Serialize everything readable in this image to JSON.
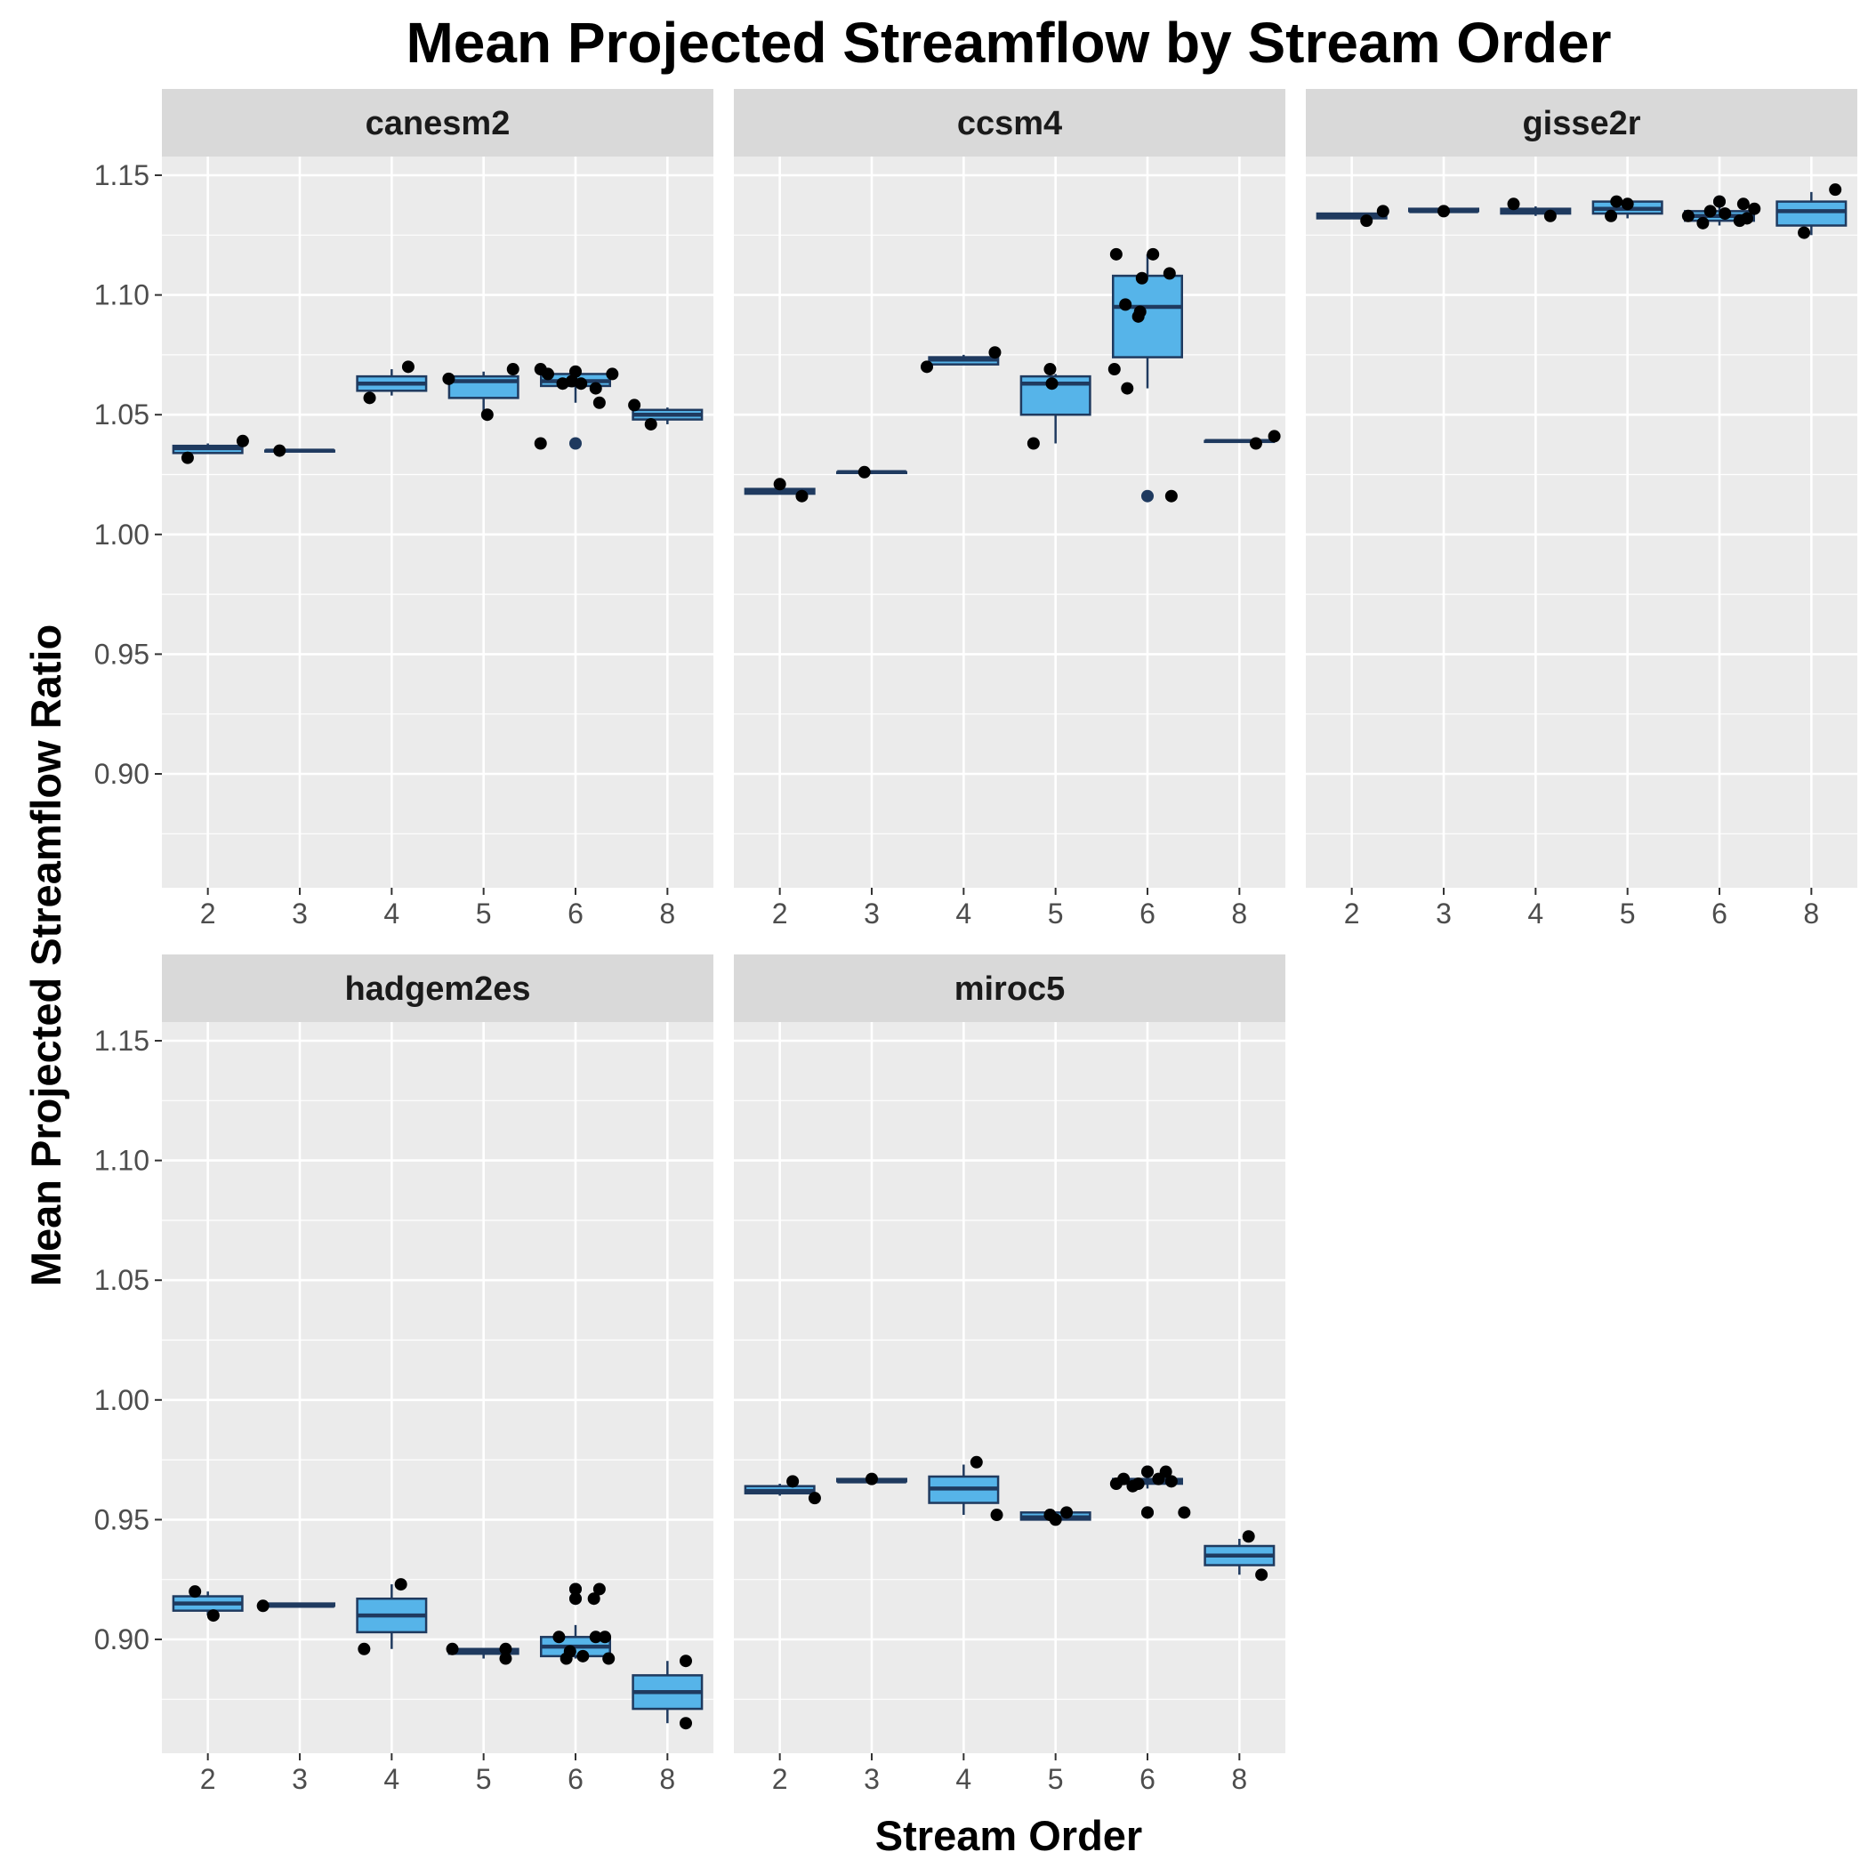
{
  "chart_data": {
    "type": "boxplot",
    "title": "Mean Projected Streamflow by Stream Order",
    "xlabel": "Stream Order",
    "ylabel": "Mean Projected Streamflow Ratio",
    "categories": [
      "2",
      "3",
      "4",
      "5",
      "6",
      "8"
    ],
    "ylim": [
      0.85,
      1.18
    ],
    "yticks": [
      "0.90",
      "0.95",
      "1.00",
      "1.05",
      "1.10",
      "1.15"
    ],
    "grid": true,
    "legend": "none",
    "colors": {
      "panel_bg": "#ebebeb",
      "strip_bg": "#d9d9d9",
      "grid": "#ffffff",
      "box_fill": "#56b4e9",
      "box_line": "#1f3a5f",
      "point": "#000000",
      "outlier": "#1f3a5f"
    },
    "panels": [
      {
        "name": "canesm2",
        "boxes": [
          {
            "x": "2",
            "q1": 1.034,
            "median": 1.036,
            "q3": 1.037,
            "lo": 1.034,
            "hi": 1.038
          },
          {
            "x": "3",
            "q1": 1.035,
            "median": 1.035,
            "q3": 1.035,
            "lo": 1.035,
            "hi": 1.035
          },
          {
            "x": "4",
            "q1": 1.06,
            "median": 1.063,
            "q3": 1.066,
            "lo": 1.058,
            "hi": 1.069
          },
          {
            "x": "5",
            "q1": 1.057,
            "median": 1.064,
            "q3": 1.066,
            "lo": 1.05,
            "hi": 1.068
          },
          {
            "x": "6",
            "q1": 1.062,
            "median": 1.064,
            "q3": 1.067,
            "lo": 1.055,
            "hi": 1.069,
            "outliers": [
              1.038
            ]
          },
          {
            "x": "8",
            "q1": 1.048,
            "median": 1.05,
            "q3": 1.052,
            "lo": 1.046,
            "hi": 1.053
          }
        ],
        "points": [
          {
            "x": "2",
            "y": 1.032,
            "j": -0.22
          },
          {
            "x": "2",
            "y": 1.039,
            "j": 0.38
          },
          {
            "x": "3",
            "y": 1.035,
            "j": -0.22
          },
          {
            "x": "4",
            "y": 1.057,
            "j": -0.24
          },
          {
            "x": "4",
            "y": 1.07,
            "j": 0.18
          },
          {
            "x": "5",
            "y": 1.065,
            "j": -0.38
          },
          {
            "x": "5",
            "y": 1.05,
            "j": 0.04
          },
          {
            "x": "5",
            "y": 1.069,
            "j": 0.32
          },
          {
            "x": "6",
            "y": 1.069,
            "j": -0.38
          },
          {
            "x": "6",
            "y": 1.067,
            "j": -0.3
          },
          {
            "x": "6",
            "y": 1.063,
            "j": -0.14
          },
          {
            "x": "6",
            "y": 1.064,
            "j": -0.04
          },
          {
            "x": "6",
            "y": 1.068,
            "j": 0.0
          },
          {
            "x": "6",
            "y": 1.063,
            "j": 0.06
          },
          {
            "x": "6",
            "y": 1.061,
            "j": 0.22
          },
          {
            "x": "6",
            "y": 1.055,
            "j": 0.26
          },
          {
            "x": "6",
            "y": 1.067,
            "j": 0.4
          },
          {
            "x": "6",
            "y": 1.038,
            "j": -0.38
          },
          {
            "x": "8",
            "y": 1.054,
            "j": -0.36
          },
          {
            "x": "8",
            "y": 1.046,
            "j": -0.18
          }
        ]
      },
      {
        "name": "ccsm4",
        "boxes": [
          {
            "x": "2",
            "q1": 1.017,
            "median": 1.018,
            "q3": 1.019,
            "lo": 1.017,
            "hi": 1.02
          },
          {
            "x": "3",
            "q1": 1.026,
            "median": 1.026,
            "q3": 1.026,
            "lo": 1.026,
            "hi": 1.026
          },
          {
            "x": "4",
            "q1": 1.071,
            "median": 1.073,
            "q3": 1.074,
            "lo": 1.071,
            "hi": 1.075
          },
          {
            "x": "5",
            "q1": 1.05,
            "median": 1.063,
            "q3": 1.066,
            "lo": 1.038,
            "hi": 1.067
          },
          {
            "x": "6",
            "q1": 1.074,
            "median": 1.095,
            "q3": 1.108,
            "lo": 1.061,
            "hi": 1.117,
            "outliers": [
              1.016
            ]
          },
          {
            "x": "8",
            "q1": 1.039,
            "median": 1.039,
            "q3": 1.039,
            "lo": 1.039,
            "hi": 1.039
          }
        ],
        "points": [
          {
            "x": "2",
            "y": 1.021,
            "j": 0.0
          },
          {
            "x": "2",
            "y": 1.016,
            "j": 0.24
          },
          {
            "x": "3",
            "y": 1.026,
            "j": -0.08
          },
          {
            "x": "4",
            "y": 1.07,
            "j": -0.4
          },
          {
            "x": "4",
            "y": 1.076,
            "j": 0.34
          },
          {
            "x": "5",
            "y": 1.038,
            "j": -0.24
          },
          {
            "x": "5",
            "y": 1.069,
            "j": -0.06
          },
          {
            "x": "5",
            "y": 1.063,
            "j": -0.04
          },
          {
            "x": "6",
            "y": 1.117,
            "j": -0.34
          },
          {
            "x": "6",
            "y": 1.096,
            "j": -0.24
          },
          {
            "x": "6",
            "y": 1.069,
            "j": -0.36
          },
          {
            "x": "6",
            "y": 1.061,
            "j": -0.22
          },
          {
            "x": "6",
            "y": 1.093,
            "j": -0.08
          },
          {
            "x": "6",
            "y": 1.091,
            "j": -0.1
          },
          {
            "x": "6",
            "y": 1.107,
            "j": -0.06
          },
          {
            "x": "6",
            "y": 1.117,
            "j": 0.06
          },
          {
            "x": "6",
            "y": 1.109,
            "j": 0.24
          },
          {
            "x": "6",
            "y": 1.016,
            "j": 0.26
          },
          {
            "x": "8",
            "y": 1.038,
            "j": 0.18
          },
          {
            "x": "8",
            "y": 1.041,
            "j": 0.38
          }
        ]
      },
      {
        "name": "gisse2r",
        "boxes": [
          {
            "x": "2",
            "q1": 1.132,
            "median": 1.133,
            "q3": 1.134,
            "lo": 1.132,
            "hi": 1.134
          },
          {
            "x": "3",
            "q1": 1.135,
            "median": 1.135,
            "q3": 1.136,
            "lo": 1.135,
            "hi": 1.136
          },
          {
            "x": "4",
            "q1": 1.134,
            "median": 1.135,
            "q3": 1.136,
            "lo": 1.133,
            "hi": 1.137
          },
          {
            "x": "5",
            "q1": 1.134,
            "median": 1.136,
            "q3": 1.139,
            "lo": 1.132,
            "hi": 1.139
          },
          {
            "x": "6",
            "q1": 1.131,
            "median": 1.133,
            "q3": 1.135,
            "lo": 1.129,
            "hi": 1.137,
            "outliers": [
              1.139
            ]
          },
          {
            "x": "8",
            "q1": 1.129,
            "median": 1.135,
            "q3": 1.139,
            "lo": 1.125,
            "hi": 1.143
          }
        ],
        "points": [
          {
            "x": "2",
            "y": 1.131,
            "j": 0.16
          },
          {
            "x": "2",
            "y": 1.135,
            "j": 0.34
          },
          {
            "x": "3",
            "y": 1.135,
            "j": 0.0
          },
          {
            "x": "4",
            "y": 1.138,
            "j": -0.24
          },
          {
            "x": "4",
            "y": 1.133,
            "j": 0.16
          },
          {
            "x": "5",
            "y": 1.133,
            "j": -0.18
          },
          {
            "x": "5",
            "y": 1.139,
            "j": -0.12
          },
          {
            "x": "5",
            "y": 1.138,
            "j": 0.0
          },
          {
            "x": "6",
            "y": 1.133,
            "j": -0.34
          },
          {
            "x": "6",
            "y": 1.13,
            "j": -0.18
          },
          {
            "x": "6",
            "y": 1.135,
            "j": -0.1
          },
          {
            "x": "6",
            "y": 1.134,
            "j": 0.06
          },
          {
            "x": "6",
            "y": 1.131,
            "j": 0.22
          },
          {
            "x": "6",
            "y": 1.138,
            "j": 0.26
          },
          {
            "x": "6",
            "y": 1.136,
            "j": 0.38
          },
          {
            "x": "6",
            "y": 1.132,
            "j": 0.3
          },
          {
            "x": "6",
            "y": 1.139,
            "j": 0.0
          },
          {
            "x": "8",
            "y": 1.126,
            "j": -0.08
          },
          {
            "x": "8",
            "y": 1.144,
            "j": 0.26
          }
        ]
      },
      {
        "name": "hadgem2es",
        "boxes": [
          {
            "x": "2",
            "q1": 0.912,
            "median": 0.915,
            "q3": 0.918,
            "lo": 0.91,
            "hi": 0.92
          },
          {
            "x": "3",
            "q1": 0.914,
            "median": 0.914,
            "q3": 0.915,
            "lo": 0.914,
            "hi": 0.915
          },
          {
            "x": "4",
            "q1": 0.903,
            "median": 0.91,
            "q3": 0.917,
            "lo": 0.896,
            "hi": 0.923
          },
          {
            "x": "5",
            "q1": 0.894,
            "median": 0.895,
            "q3": 0.896,
            "lo": 0.892,
            "hi": 0.896
          },
          {
            "x": "6",
            "q1": 0.893,
            "median": 0.897,
            "q3": 0.901,
            "lo": 0.892,
            "hi": 0.906,
            "outliers": [
              0.921,
              0.917
            ]
          },
          {
            "x": "8",
            "q1": 0.871,
            "median": 0.878,
            "q3": 0.885,
            "lo": 0.865,
            "hi": 0.891
          }
        ],
        "points": [
          {
            "x": "2",
            "y": 0.92,
            "j": -0.14
          },
          {
            "x": "2",
            "y": 0.91,
            "j": 0.06
          },
          {
            "x": "3",
            "y": 0.914,
            "j": -0.4
          },
          {
            "x": "4",
            "y": 0.896,
            "j": -0.3
          },
          {
            "x": "4",
            "y": 0.923,
            "j": 0.1
          },
          {
            "x": "5",
            "y": 0.896,
            "j": -0.34
          },
          {
            "x": "5",
            "y": 0.896,
            "j": 0.24
          },
          {
            "x": "5",
            "y": 0.892,
            "j": 0.24
          },
          {
            "x": "6",
            "y": 0.901,
            "j": -0.18
          },
          {
            "x": "6",
            "y": 0.892,
            "j": -0.1
          },
          {
            "x": "6",
            "y": 0.895,
            "j": -0.06
          },
          {
            "x": "6",
            "y": 0.893,
            "j": 0.08
          },
          {
            "x": "6",
            "y": 0.917,
            "j": 0.2
          },
          {
            "x": "6",
            "y": 0.921,
            "j": 0.26
          },
          {
            "x": "6",
            "y": 0.901,
            "j": 0.22
          },
          {
            "x": "6",
            "y": 0.901,
            "j": 0.32
          },
          {
            "x": "6",
            "y": 0.892,
            "j": 0.36
          },
          {
            "x": "6",
            "y": 0.921,
            "j": 0.0
          },
          {
            "x": "6",
            "y": 0.917,
            "j": 0.0
          },
          {
            "x": "8",
            "y": 0.891,
            "j": 0.2
          },
          {
            "x": "8",
            "y": 0.865,
            "j": 0.2
          }
        ]
      },
      {
        "name": "miroc5",
        "boxes": [
          {
            "x": "2",
            "q1": 0.961,
            "median": 0.962,
            "q3": 0.964,
            "lo": 0.96,
            "hi": 0.965
          },
          {
            "x": "3",
            "q1": 0.966,
            "median": 0.966,
            "q3": 0.967,
            "lo": 0.966,
            "hi": 0.967
          },
          {
            "x": "4",
            "q1": 0.957,
            "median": 0.963,
            "q3": 0.968,
            "lo": 0.952,
            "hi": 0.973
          },
          {
            "x": "5",
            "q1": 0.95,
            "median": 0.951,
            "q3": 0.953,
            "lo": 0.949,
            "hi": 0.953
          },
          {
            "x": "6",
            "q1": 0.965,
            "median": 0.966,
            "q3": 0.967,
            "lo": 0.963,
            "hi": 0.97,
            "outliers": [
              0.953,
              0.97
            ]
          },
          {
            "x": "8",
            "q1": 0.931,
            "median": 0.935,
            "q3": 0.939,
            "lo": 0.927,
            "hi": 0.942
          }
        ],
        "points": [
          {
            "x": "2",
            "y": 0.966,
            "j": 0.14
          },
          {
            "x": "2",
            "y": 0.959,
            "j": 0.38
          },
          {
            "x": "3",
            "y": 0.967,
            "j": 0.0
          },
          {
            "x": "4",
            "y": 0.974,
            "j": 0.14
          },
          {
            "x": "4",
            "y": 0.952,
            "j": 0.36
          },
          {
            "x": "5",
            "y": 0.952,
            "j": -0.06
          },
          {
            "x": "5",
            "y": 0.95,
            "j": 0.0
          },
          {
            "x": "5",
            "y": 0.953,
            "j": 0.12
          },
          {
            "x": "6",
            "y": 0.965,
            "j": -0.34
          },
          {
            "x": "6",
            "y": 0.967,
            "j": -0.26
          },
          {
            "x": "6",
            "y": 0.964,
            "j": -0.16
          },
          {
            "x": "6",
            "y": 0.965,
            "j": -0.1
          },
          {
            "x": "6",
            "y": 0.967,
            "j": 0.12
          },
          {
            "x": "6",
            "y": 0.97,
            "j": 0.2
          },
          {
            "x": "6",
            "y": 0.966,
            "j": 0.26
          },
          {
            "x": "6",
            "y": 0.953,
            "j": 0.4
          },
          {
            "x": "6",
            "y": 0.97,
            "j": 0.0
          },
          {
            "x": "6",
            "y": 0.953,
            "j": 0.0
          },
          {
            "x": "8",
            "y": 0.943,
            "j": 0.1
          },
          {
            "x": "8",
            "y": 0.927,
            "j": 0.24
          }
        ]
      }
    ]
  }
}
